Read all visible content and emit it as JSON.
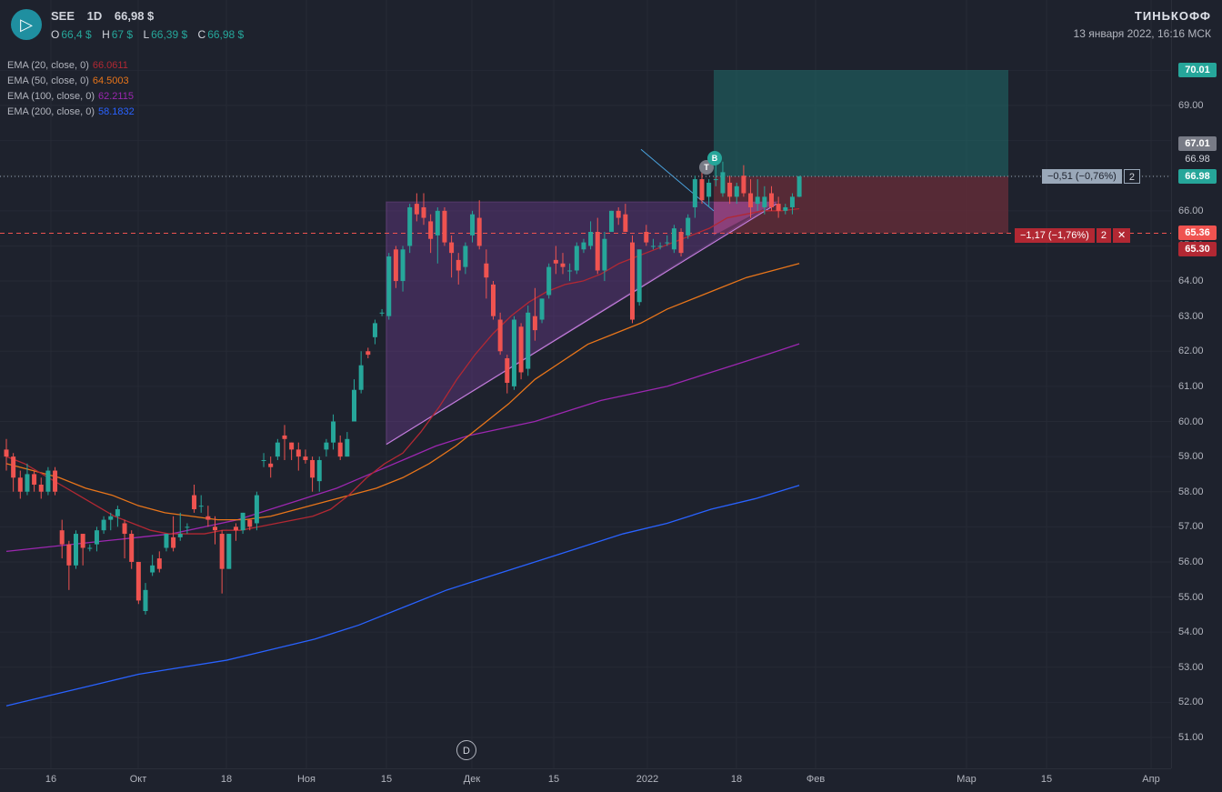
{
  "header": {
    "ticker": "SEE",
    "interval": "1D",
    "price": "66,98 $",
    "ohlc": [
      {
        "k": "O",
        "v": "66,4 $"
      },
      {
        "k": "H",
        "v": "67 $"
      },
      {
        "k": "L",
        "v": "66,39 $"
      },
      {
        "k": "C",
        "v": "66,98 $"
      }
    ],
    "brand": "ТИНЬКОФФ",
    "timestamp": "13 января 2022, 16:16 МСК"
  },
  "ema": [
    {
      "label": "EMA (20, close, 0)",
      "value": "66.0611",
      "color": "#b22833"
    },
    {
      "label": "EMA (50, close, 0)",
      "value": "64.5003",
      "color": "#e8751a"
    },
    {
      "label": "EMA (100, close, 0)",
      "value": "62.2115",
      "color": "#9c27b0"
    },
    {
      "label": "EMA (200, close, 0)",
      "value": "58.1832",
      "color": "#2962ff"
    }
  ],
  "price_tags": {
    "target": "70.01",
    "high_marker": "67.01",
    "last_small": "66.98",
    "last": "66.98",
    "stop_line": "65.36",
    "stop": "65.30"
  },
  "position": {
    "upper": {
      "text": "−0,51 (−0,76%)",
      "qty": "2"
    },
    "lower": {
      "text": "−1,17 (−1,76%)",
      "qty": "2"
    }
  },
  "markers": {
    "d": "D",
    "t": "T",
    "b": "B"
  },
  "colors": {
    "up": "#26a69a",
    "down": "#ef5350",
    "bg": "#1e222d",
    "grid": "#2a2e39"
  },
  "chart_data": {
    "type": "candlestick",
    "yticks": [
      "51.00",
      "52.00",
      "53.00",
      "54.00",
      "55.00",
      "56.00",
      "57.00",
      "58.00",
      "59.00",
      "60.00",
      "61.00",
      "62.00",
      "63.00",
      "64.00",
      "65.00",
      "66.00",
      "67.00",
      "68.00",
      "69.00"
    ],
    "xticks": [
      "16",
      "Окт",
      "18",
      "Ноя",
      "15",
      "Дек",
      "15",
      "2022",
      "18",
      "Фев",
      "Мар",
      "15",
      "Апр"
    ],
    "ylim": [
      50.3,
      71.0
    ],
    "candles": [
      [
        59.2,
        59.5,
        58.6,
        59.0
      ],
      [
        59.0,
        59.1,
        58.0,
        58.4
      ],
      [
        58.4,
        58.6,
        57.8,
        58.0
      ],
      [
        58.0,
        58.8,
        57.9,
        58.5
      ],
      [
        58.5,
        58.6,
        58.0,
        58.2
      ],
      [
        58.2,
        58.4,
        57.8,
        58.0
      ],
      [
        58.0,
        58.7,
        57.9,
        58.6
      ],
      [
        58.6,
        58.7,
        57.9,
        58.0
      ],
      [
        56.9,
        57.2,
        56.1,
        56.5
      ],
      [
        56.5,
        56.6,
        55.2,
        55.9
      ],
      [
        55.9,
        56.9,
        55.8,
        56.8
      ],
      [
        56.8,
        56.8,
        55.9,
        56.4
      ],
      [
        56.4,
        56.5,
        56.3,
        56.4
      ],
      [
        56.5,
        57.0,
        56.3,
        56.9
      ],
      [
        56.9,
        57.3,
        56.8,
        57.2
      ],
      [
        57.2,
        57.4,
        56.9,
        57.3
      ],
      [
        57.3,
        57.6,
        57.0,
        57.5
      ],
      [
        57.1,
        57.2,
        56.1,
        56.8
      ],
      [
        56.8,
        56.9,
        55.8,
        56.0
      ],
      [
        56.0,
        56.0,
        54.8,
        54.9
      ],
      [
        54.6,
        55.4,
        54.5,
        55.2
      ],
      [
        55.7,
        56.2,
        55.6,
        55.9
      ],
      [
        56.1,
        56.3,
        55.7,
        55.8
      ],
      [
        56.4,
        56.8,
        56.3,
        56.8
      ],
      [
        56.7,
        57.3,
        56.3,
        56.4
      ],
      [
        56.7,
        57.4,
        56.6,
        56.8
      ],
      [
        57.0,
        57.1,
        56.8,
        57.0
      ],
      [
        57.9,
        58.2,
        57.4,
        57.5
      ],
      [
        57.6,
        57.9,
        57.4,
        57.6
      ],
      [
        57.3,
        57.6,
        57.0,
        57.2
      ],
      [
        57.0,
        57.3,
        56.5,
        56.9
      ],
      [
        56.8,
        56.9,
        55.1,
        55.8
      ],
      [
        55.8,
        56.8,
        55.8,
        56.8
      ],
      [
        57.0,
        57.1,
        56.6,
        56.9
      ],
      [
        56.9,
        57.4,
        56.8,
        57.4
      ],
      [
        57.2,
        57.2,
        56.9,
        57.0
      ],
      [
        57.1,
        58.0,
        56.9,
        57.9
      ],
      [
        58.9,
        59.1,
        58.7,
        58.9
      ],
      [
        58.8,
        59.0,
        58.4,
        58.7
      ],
      [
        59.0,
        59.5,
        58.9,
        59.4
      ],
      [
        59.6,
        59.9,
        58.9,
        59.5
      ],
      [
        59.4,
        59.4,
        58.9,
        59.2
      ],
      [
        59.2,
        59.4,
        58.6,
        59.0
      ],
      [
        59.0,
        59.2,
        58.8,
        58.9
      ],
      [
        58.9,
        59.0,
        58.0,
        58.4
      ],
      [
        58.3,
        59.0,
        58.0,
        58.9
      ],
      [
        59.2,
        59.5,
        59.0,
        59.4
      ],
      [
        59.4,
        60.2,
        59.2,
        60.0
      ],
      [
        59.4,
        59.6,
        58.9,
        59.0
      ],
      [
        59.0,
        59.7,
        59.0,
        59.5
      ],
      [
        60.0,
        61.2,
        60.0,
        60.9
      ],
      [
        60.9,
        62.0,
        60.8,
        61.6
      ],
      [
        62.0,
        62.1,
        61.8,
        61.9
      ],
      [
        62.4,
        62.9,
        62.2,
        62.8
      ],
      [
        63.1,
        63.2,
        63.0,
        63.1
      ],
      [
        63.0,
        64.8,
        62.9,
        64.7
      ],
      [
        64.9,
        65.0,
        63.8,
        64.0
      ],
      [
        64.0,
        65.0,
        63.7,
        64.9
      ],
      [
        65.0,
        66.2,
        64.8,
        66.1
      ],
      [
        66.2,
        66.5,
        65.7,
        65.9
      ],
      [
        66.1,
        66.5,
        65.6,
        65.8
      ],
      [
        65.7,
        65.9,
        64.8,
        65.2
      ],
      [
        65.3,
        66.1,
        64.5,
        66.0
      ],
      [
        66.0,
        66.1,
        65.0,
        65.1
      ],
      [
        65.1,
        65.3,
        64.1,
        64.8
      ],
      [
        64.6,
        64.8,
        63.9,
        64.3
      ],
      [
        64.4,
        65.1,
        64.2,
        65.0
      ],
      [
        65.3,
        66.0,
        65.1,
        65.9
      ],
      [
        65.8,
        66.3,
        64.9,
        65.0
      ],
      [
        64.5,
        64.9,
        63.5,
        64.1
      ],
      [
        63.9,
        64.0,
        62.9,
        63.0
      ],
      [
        62.9,
        63.1,
        61.9,
        62.0
      ],
      [
        61.8,
        61.9,
        60.8,
        61.1
      ],
      [
        61.0,
        63.0,
        60.9,
        62.9
      ],
      [
        62.7,
        62.8,
        61.2,
        61.4
      ],
      [
        61.5,
        63.3,
        61.3,
        63.1
      ],
      [
        63.0,
        63.8,
        62.3,
        62.6
      ],
      [
        62.9,
        63.5,
        62.8,
        63.5
      ],
      [
        63.6,
        64.5,
        63.5,
        64.4
      ],
      [
        64.6,
        65.0,
        64.2,
        64.5
      ],
      [
        64.5,
        64.8,
        64.2,
        64.4
      ],
      [
        64.3,
        64.5,
        64.0,
        64.3
      ],
      [
        64.3,
        65.1,
        64.2,
        65.0
      ],
      [
        64.9,
        65.2,
        64.8,
        65.1
      ],
      [
        65.0,
        65.7,
        64.9,
        65.4
      ],
      [
        65.4,
        65.8,
        64.2,
        64.3
      ],
      [
        64.3,
        65.4,
        64.0,
        65.2
      ],
      [
        65.4,
        66.0,
        65.4,
        66.0
      ],
      [
        66.0,
        66.1,
        65.6,
        65.8
      ],
      [
        65.9,
        66.2,
        65.4,
        65.4
      ],
      [
        65.1,
        65.3,
        62.8,
        62.9
      ],
      [
        63.4,
        64.9,
        63.3,
        64.9
      ],
      [
        65.4,
        65.6,
        65.0,
        65.1
      ],
      [
        65.0,
        65.2,
        64.9,
        65.0
      ],
      [
        65.0,
        65.1,
        64.9,
        65.0
      ],
      [
        65.1,
        65.3,
        65.0,
        65.1
      ],
      [
        64.9,
        65.6,
        64.8,
        65.5
      ],
      [
        65.4,
        65.5,
        64.7,
        64.8
      ],
      [
        65.3,
        65.9,
        65.2,
        65.8
      ],
      [
        66.1,
        67.0,
        65.8,
        66.9
      ],
      [
        66.9,
        67.2,
        66.2,
        66.3
      ],
      [
        66.4,
        66.9,
        66.1,
        66.8
      ],
      [
        66.9,
        67.3,
        66.7,
        66.9
      ],
      [
        66.5,
        67.4,
        66.4,
        67.1
      ],
      [
        66.8,
        67.0,
        66.2,
        66.4
      ],
      [
        66.4,
        66.8,
        66.2,
        66.7
      ],
      [
        67.0,
        67.3,
        66.4,
        66.5
      ],
      [
        66.5,
        66.9,
        65.8,
        66.1
      ],
      [
        66.2,
        66.9,
        66.0,
        66.4
      ],
      [
        66.1,
        66.7,
        65.9,
        66.4
      ],
      [
        66.5,
        66.7,
        66.0,
        66.1
      ],
      [
        66.2,
        66.4,
        65.8,
        66.0
      ],
      [
        66.0,
        66.2,
        65.9,
        66.1
      ],
      [
        66.1,
        66.5,
        65.9,
        66.4
      ],
      [
        66.4,
        67.0,
        66.39,
        66.98
      ]
    ],
    "ema20": [
      59.0,
      58.8,
      58.5,
      58.2,
      57.9,
      57.6,
      57.3,
      57.1,
      56.9,
      56.8,
      56.8,
      56.8,
      56.9,
      56.9,
      57.0,
      57.1,
      57.2,
      57.3,
      57.5,
      57.9,
      58.4,
      58.8,
      59.1,
      59.7,
      60.4,
      61.2,
      61.9,
      62.5,
      63.0,
      63.4,
      63.7,
      63.9,
      64.0,
      64.2,
      64.5,
      64.7,
      64.9,
      65.1,
      65.3,
      65.5,
      65.8,
      65.9,
      66.0,
      66.0,
      66.06
    ],
    "ema50": [
      58.8,
      58.6,
      58.4,
      58.1,
      57.9,
      57.6,
      57.4,
      57.3,
      57.2,
      57.2,
      57.3,
      57.5,
      57.7,
      57.9,
      58.1,
      58.4,
      58.8,
      59.3,
      59.9,
      60.5,
      61.2,
      61.7,
      62.2,
      62.5,
      62.8,
      63.2,
      63.5,
      63.8,
      64.1,
      64.3,
      64.5
    ],
    "ema100": [
      56.3,
      56.4,
      56.5,
      56.6,
      56.7,
      56.8,
      57.0,
      57.2,
      57.5,
      57.8,
      58.1,
      58.5,
      58.9,
      59.3,
      59.6,
      59.8,
      60.0,
      60.3,
      60.6,
      60.8,
      61.0,
      61.3,
      61.6,
      61.9,
      62.21
    ],
    "ema200": [
      51.9,
      52.2,
      52.5,
      52.8,
      53.0,
      53.2,
      53.5,
      53.8,
      54.2,
      54.7,
      55.2,
      55.6,
      56.0,
      56.4,
      56.8,
      57.1,
      57.5,
      57.8,
      58.18
    ]
  }
}
